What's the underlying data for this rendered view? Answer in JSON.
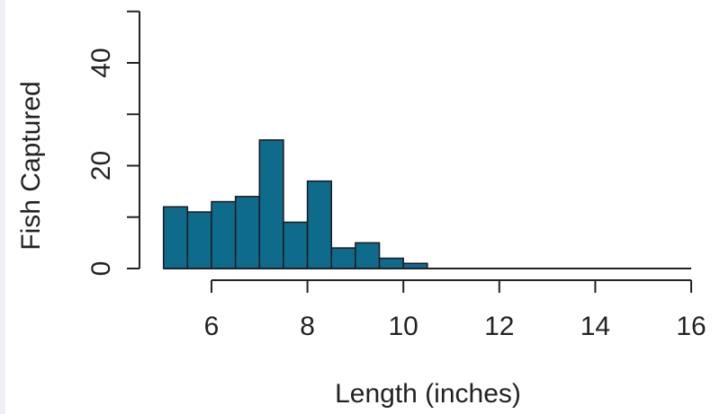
{
  "chart_data": {
    "type": "bar",
    "title": "",
    "xlabel": "Length (inches)",
    "ylabel": "Fish Captured",
    "bins": [
      {
        "start": 5.0,
        "end": 5.5,
        "count": 12
      },
      {
        "start": 5.5,
        "end": 6.0,
        "count": 11
      },
      {
        "start": 6.0,
        "end": 6.5,
        "count": 13
      },
      {
        "start": 6.5,
        "end": 7.0,
        "count": 14
      },
      {
        "start": 7.0,
        "end": 7.5,
        "count": 25
      },
      {
        "start": 7.5,
        "end": 8.0,
        "count": 9
      },
      {
        "start": 8.0,
        "end": 8.5,
        "count": 17
      },
      {
        "start": 8.5,
        "end": 9.0,
        "count": 4
      },
      {
        "start": 9.0,
        "end": 9.5,
        "count": 5
      },
      {
        "start": 9.5,
        "end": 10.0,
        "count": 2
      },
      {
        "start": 10.0,
        "end": 10.5,
        "count": 1
      }
    ],
    "xlim": [
      5,
      16
    ],
    "ylim": [
      0,
      50
    ],
    "x_ticks": [
      "6",
      "8",
      "10",
      "12",
      "14",
      "16"
    ],
    "y_ticks": [
      "0",
      "20",
      "40"
    ],
    "bar_color": "#0f6b8c",
    "grid": false
  }
}
